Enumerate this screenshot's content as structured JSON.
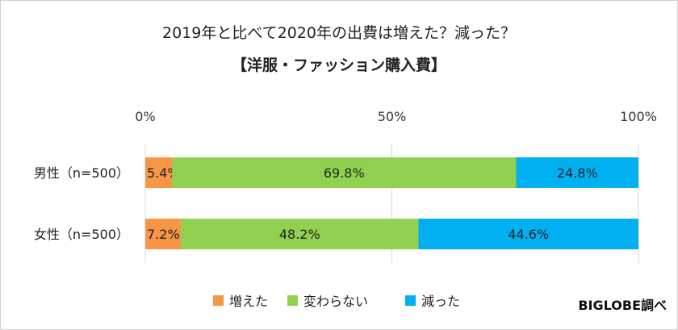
{
  "chart_data": {
    "type": "bar",
    "orientation": "horizontal",
    "stacked": true,
    "title": "2019年と比べて2020年の出費は増えた？減った？",
    "subtitle": "【洋服・ファッション購入費】",
    "categories": [
      "男性（n=500）",
      "女性（n=500）"
    ],
    "series": [
      {
        "name": "増えた",
        "color": "#F79646",
        "values": [
          5.4,
          7.2
        ],
        "labels": [
          "5.4%",
          "7.2%"
        ]
      },
      {
        "name": "変わらない",
        "color": "#92D050",
        "values": [
          69.8,
          48.2
        ],
        "labels": [
          "69.8%",
          "48.2%"
        ]
      },
      {
        "name": "減った",
        "color": "#00B0F0",
        "values": [
          24.8,
          44.6
        ],
        "labels": [
          "24.8%",
          "44.6%"
        ]
      }
    ],
    "x_ticks": [
      "0%",
      "50%",
      "100%"
    ],
    "xlim": [
      0,
      100
    ],
    "grid": true,
    "legend_position": "bottom",
    "credit": "BIGLOBE調べ"
  }
}
